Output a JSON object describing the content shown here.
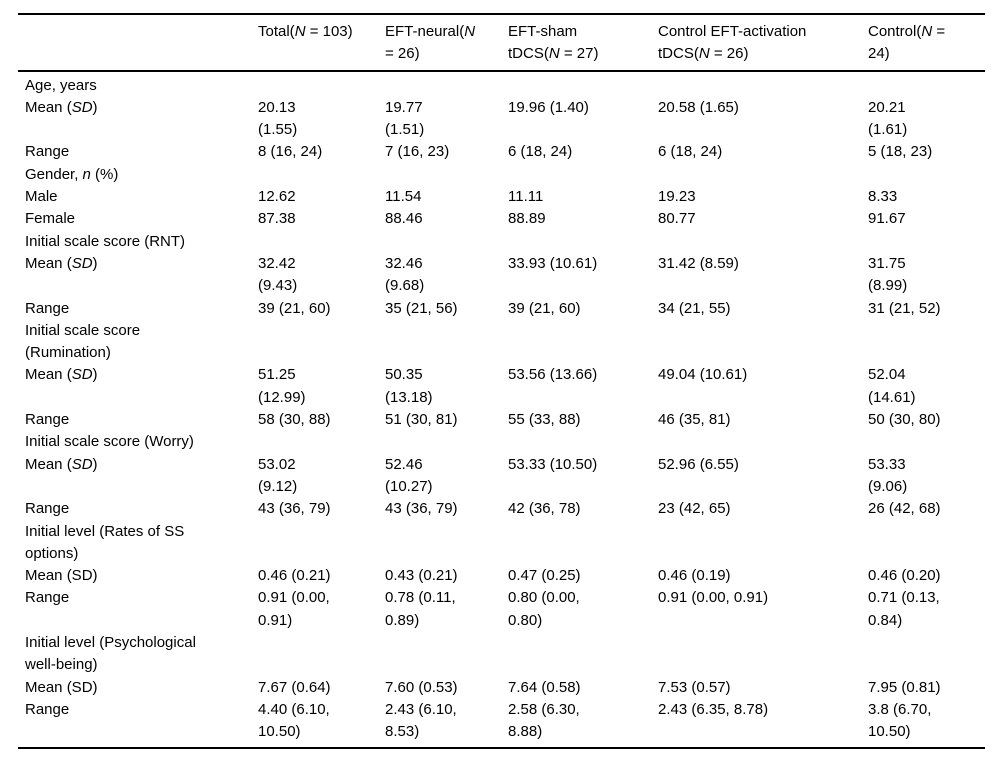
{
  "page": {
    "background": "#ffffff",
    "text_color": "#000000",
    "rule_color": "#000000"
  },
  "table": {
    "header": [
      {
        "pre": "",
        "it": "",
        "post": ""
      },
      {
        "pre": "Total(",
        "it": "N",
        "post": " = 103)"
      },
      {
        "pre": "EFT-neural(",
        "it": "N",
        "post": "\n= 26)"
      },
      {
        "pre": "EFT-sham\ntDCS(",
        "it": "N",
        "post": " = 27)"
      },
      {
        "pre": "Control EFT-activation\ntDCS(",
        "it": "N",
        "post": " = 26)"
      },
      {
        "pre": "Control(",
        "it": "N",
        "post": " =\n24)"
      }
    ],
    "rows": [
      {
        "label": {
          "pre": "Age, years",
          "it": "",
          "post": ""
        },
        "cells": [
          "",
          "",
          "",
          "",
          ""
        ]
      },
      {
        "label": {
          "pre": "Mean (",
          "it": "SD",
          "post": ")"
        },
        "cells": [
          "20.13\n(1.55)",
          "19.77\n(1.51)",
          "19.96 (1.40)",
          "20.58 (1.65)",
          "20.21\n(1.61)"
        ]
      },
      {
        "label": {
          "pre": "Range",
          "it": "",
          "post": ""
        },
        "cells": [
          "8 (16, 24)",
          "7 (16, 23)",
          "6 (18, 24)",
          "6 (18, 24)",
          "5 (18, 23)"
        ]
      },
      {
        "label": {
          "pre": "Gender, ",
          "it": "n",
          "post": " (%)"
        },
        "cells": [
          "",
          "",
          "",
          "",
          ""
        ]
      },
      {
        "label": {
          "pre": "Male",
          "it": "",
          "post": ""
        },
        "cells": [
          "12.62",
          "11.54",
          "11.11",
          "19.23",
          "8.33"
        ]
      },
      {
        "label": {
          "pre": "Female",
          "it": "",
          "post": ""
        },
        "cells": [
          "87.38",
          "88.46",
          "88.89",
          "80.77",
          "91.67"
        ]
      },
      {
        "label": {
          "pre": "Initial scale score (RNT)",
          "it": "",
          "post": ""
        },
        "cells": [
          "",
          "",
          "",
          "",
          ""
        ]
      },
      {
        "label": {
          "pre": "Mean (",
          "it": "SD",
          "post": ")"
        },
        "cells": [
          "32.42\n(9.43)",
          "32.46\n(9.68)",
          "33.93 (10.61)",
          "31.42 (8.59)",
          "31.75\n(8.99)"
        ]
      },
      {
        "label": {
          "pre": "Range",
          "it": "",
          "post": ""
        },
        "cells": [
          "39 (21, 60)",
          "35 (21, 56)",
          "39 (21, 60)",
          "34 (21, 55)",
          "31 (21, 52)"
        ]
      },
      {
        "label": {
          "pre": "Initial scale score\n(Rumination)",
          "it": "",
          "post": ""
        },
        "cells": [
          "",
          "",
          "",
          "",
          ""
        ]
      },
      {
        "label": {
          "pre": "Mean (",
          "it": "SD",
          "post": ")"
        },
        "cells": [
          "51.25\n(12.99)",
          "50.35\n(13.18)",
          "53.56 (13.66)",
          "49.04 (10.61)",
          "52.04\n(14.61)"
        ]
      },
      {
        "label": {
          "pre": "Range",
          "it": "",
          "post": ""
        },
        "cells": [
          "58 (30, 88)",
          "51 (30, 81)",
          "55 (33, 88)",
          "46 (35, 81)",
          "50 (30, 80)"
        ]
      },
      {
        "label": {
          "pre": "Initial scale score (Worry)",
          "it": "",
          "post": ""
        },
        "cells": [
          "",
          "",
          "",
          "",
          ""
        ]
      },
      {
        "label": {
          "pre": "Mean (",
          "it": "SD",
          "post": ")"
        },
        "cells": [
          "53.02\n(9.12)",
          "52.46\n(10.27)",
          "53.33 (10.50)",
          "52.96 (6.55)",
          "53.33\n(9.06)"
        ]
      },
      {
        "label": {
          "pre": "Range",
          "it": "",
          "post": ""
        },
        "cells": [
          "43 (36, 79)",
          "43 (36, 79)",
          "42 (36, 78)",
          "23 (42, 65)",
          "26 (42, 68)"
        ]
      },
      {
        "label": {
          "pre": "Initial level (Rates of SS\noptions)",
          "it": "",
          "post": ""
        },
        "cells": [
          "",
          "",
          "",
          "",
          ""
        ]
      },
      {
        "label": {
          "pre": "Mean (SD)",
          "it": "",
          "post": ""
        },
        "cells": [
          "0.46 (0.21)",
          "0.43 (0.21)",
          "0.47 (0.25)",
          "0.46 (0.19)",
          "0.46 (0.20)"
        ]
      },
      {
        "label": {
          "pre": "Range",
          "it": "",
          "post": ""
        },
        "cells": [
          "0.91 (0.00,\n0.91)",
          "0.78 (0.11,\n0.89)",
          "0.80 (0.00,\n0.80)",
          "0.91 (0.00, 0.91)",
          "0.71 (0.13,\n0.84)"
        ]
      },
      {
        "label": {
          "pre": "Initial level (Psychological\nwell-being)",
          "it": "",
          "post": ""
        },
        "cells": [
          "",
          "",
          "",
          "",
          ""
        ]
      },
      {
        "label": {
          "pre": "Mean (SD)",
          "it": "",
          "post": ""
        },
        "cells": [
          "7.67 (0.64)",
          "7.60 (0.53)",
          "7.64 (0.58)",
          "7.53 (0.57)",
          "7.95 (0.81)"
        ]
      },
      {
        "label": {
          "pre": "Range",
          "it": "",
          "post": ""
        },
        "cells": [
          "4.40 (6.10,\n10.50)",
          "2.43 (6.10,\n8.53)",
          "2.58 (6.30,\n8.88)",
          "2.43 (6.35, 8.78)",
          "3.8 (6.70,\n10.50)"
        ]
      }
    ]
  }
}
